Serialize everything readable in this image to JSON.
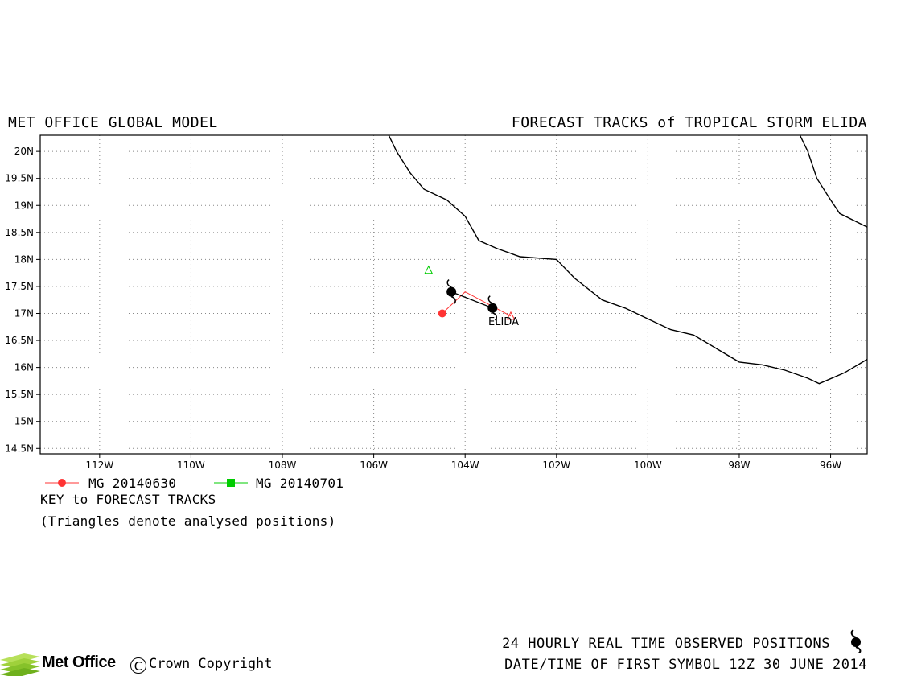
{
  "header": {
    "left_title": "MET OFFICE GLOBAL MODEL",
    "right_title": "FORECAST TRACKS of TROPICAL STORM ELIDA"
  },
  "map": {
    "lon_range": [
      -113.3,
      -95.2
    ],
    "lat_range": [
      14.4,
      20.3
    ],
    "grid": "dotted",
    "x_ticks": [
      {
        "lon": -112,
        "label": "112W"
      },
      {
        "lon": -110,
        "label": "110W"
      },
      {
        "lon": -108,
        "label": "108W"
      },
      {
        "lon": -106,
        "label": "106W"
      },
      {
        "lon": -104,
        "label": "104W"
      },
      {
        "lon": -102,
        "label": "102W"
      },
      {
        "lon": -100,
        "label": "100W"
      },
      {
        "lon": -98,
        "label": "98W"
      },
      {
        "lon": -96,
        "label": "96W"
      }
    ],
    "y_ticks": [
      {
        "lat": 20,
        "label": "20N"
      },
      {
        "lat": 19.5,
        "label": "19.5N"
      },
      {
        "lat": 19,
        "label": "19N"
      },
      {
        "lat": 18.5,
        "label": "18.5N"
      },
      {
        "lat": 18,
        "label": "18N"
      },
      {
        "lat": 17.5,
        "label": "17.5N"
      },
      {
        "lat": 17,
        "label": "17N"
      },
      {
        "lat": 16.5,
        "label": "16.5N"
      },
      {
        "lat": 16,
        "label": "16N"
      },
      {
        "lat": 15.5,
        "label": "15.5N"
      },
      {
        "lat": 15,
        "label": "15N"
      },
      {
        "lat": 14.5,
        "label": "14.5N"
      }
    ],
    "coastlines": [
      [
        [
          -105.7,
          20.35
        ],
        [
          -105.5,
          20.0
        ],
        [
          -105.2,
          19.6
        ],
        [
          -104.9,
          19.3
        ],
        [
          -104.4,
          19.1
        ],
        [
          -104.0,
          18.8
        ],
        [
          -103.7,
          18.35
        ],
        [
          -103.3,
          18.2
        ],
        [
          -102.8,
          18.05
        ],
        [
          -102.0,
          18.0
        ],
        [
          -101.6,
          17.65
        ],
        [
          -101.0,
          17.25
        ],
        [
          -100.5,
          17.1
        ],
        [
          -100.0,
          16.9
        ],
        [
          -99.5,
          16.7
        ],
        [
          -99.0,
          16.6
        ],
        [
          -98.5,
          16.35
        ],
        [
          -98.0,
          16.1
        ],
        [
          -97.5,
          16.05
        ],
        [
          -97.0,
          15.95
        ],
        [
          -96.5,
          15.8
        ],
        [
          -96.25,
          15.7
        ],
        [
          -95.7,
          15.9
        ],
        [
          -95.2,
          16.15
        ]
      ],
      [
        [
          -96.7,
          20.35
        ],
        [
          -96.5,
          20.0
        ],
        [
          -96.3,
          19.5
        ],
        [
          -96.0,
          19.1
        ],
        [
          -95.8,
          18.85
        ],
        [
          -95.2,
          18.6
        ]
      ]
    ]
  },
  "storm": {
    "name": "ELIDA",
    "observed_positions": [
      {
        "lon": -104.3,
        "lat": 17.4
      },
      {
        "lon": -103.4,
        "lat": 17.1
      }
    ],
    "track_color": "#000000"
  },
  "forecast_tracks": [
    {
      "id": "MG 20140630",
      "color": "#ff3333",
      "marker": "circle",
      "points": [
        {
          "lon": -103.0,
          "lat": 16.95
        },
        {
          "lon": -104.0,
          "lat": 17.4
        },
        {
          "lon": -104.5,
          "lat": 17.0
        }
      ]
    },
    {
      "id": "MG 20140701",
      "color": "#00cc00",
      "marker": "square",
      "points": [
        {
          "lon": -104.8,
          "lat": 17.8
        }
      ]
    }
  ],
  "key": {
    "title": "KEY to FORECAST TRACKS",
    "note": "(Triangles denote analysed positions)"
  },
  "footer": {
    "observed_label": "24 HOURLY REAL TIME OBSERVED POSITIONS",
    "date_label": "DATE/TIME OF FIRST SYMBOL 12Z 30 JUNE 2014",
    "brand": "Met Office",
    "copyright_symbol": "C",
    "copyright_text": "Crown Copyright"
  }
}
